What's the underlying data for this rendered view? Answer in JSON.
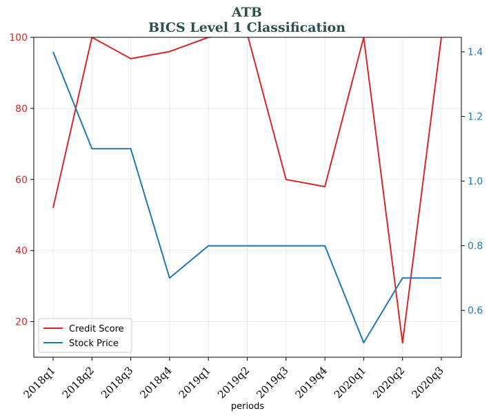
{
  "chart_data": {
    "type": "line",
    "title": "ATB",
    "subtitle": "BICS Level 1 Classification",
    "xlabel": "periods",
    "categories": [
      "2018q1",
      "2018q2",
      "2018q3",
      "2018q4",
      "2019q1",
      "2019q2",
      "2019q3",
      "2019q4",
      "2020q1",
      "2020q2",
      "2020q3"
    ],
    "series": [
      {
        "name": "Credit Score",
        "axis": "left",
        "color": "#d62728",
        "values": [
          52,
          100,
          94,
          96,
          100,
          101,
          60,
          58,
          100,
          14,
          100
        ]
      },
      {
        "name": "Stock Price",
        "axis": "right",
        "color": "#1f77b4",
        "values": [
          1.4,
          1.1,
          1.1,
          0.7,
          0.8,
          0.8,
          0.8,
          0.8,
          0.5,
          0.7,
          0.7
        ]
      }
    ],
    "y_left": {
      "ylim": [
        10,
        100
      ],
      "ticks": [
        20,
        40,
        60,
        80,
        100
      ]
    },
    "y_right": {
      "ylim": [
        0.455,
        1.445
      ],
      "ticks": [
        "0.6",
        "0.8",
        "1.0",
        "1.2",
        "1.4"
      ]
    },
    "grid": true,
    "legend": "lower-left"
  }
}
